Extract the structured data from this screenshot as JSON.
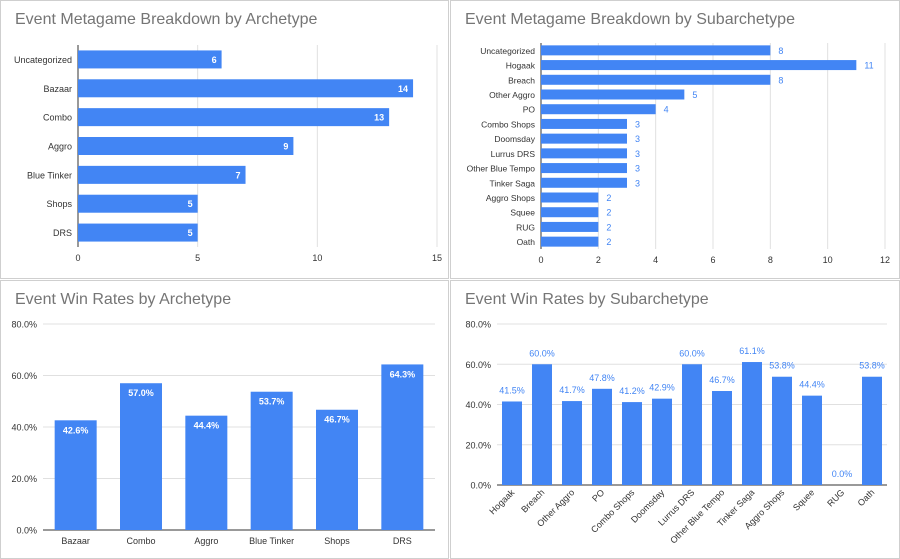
{
  "colors": {
    "bar": "#4285f4",
    "grid": "#e0e0e0",
    "axis": "#333333",
    "title": "#757575",
    "label_out": "#4285f4",
    "label_in": "#ffffff"
  },
  "chart_data": [
    {
      "type": "bar",
      "orientation": "horizontal",
      "title": "Event Metagame Breakdown by Archetype",
      "categories": [
        "Uncategorized",
        "Bazaar",
        "Combo",
        "Aggro",
        "Blue Tinker",
        "Shops",
        "DRS"
      ],
      "values": [
        6,
        14,
        13,
        9,
        7,
        5,
        5
      ],
      "xlim": [
        0,
        15
      ],
      "ticks": [
        0,
        5,
        10,
        15
      ],
      "tick_labels": [
        "0",
        "5",
        "10",
        "15"
      ],
      "grid": true,
      "legend": "none"
    },
    {
      "type": "bar",
      "orientation": "horizontal",
      "title": "Event Metagame Breakdown by Subarchetype",
      "categories": [
        "Uncategorized",
        "Hogaak",
        "Breach",
        "Other Aggro",
        "PO",
        "Combo Shops",
        "Doomsday",
        "Lurrus DRS",
        "Other Blue Tempo",
        "Tinker Saga",
        "Aggro Shops",
        "Squee",
        "RUG",
        "Oath"
      ],
      "values": [
        8,
        11,
        8,
        5,
        4,
        3,
        3,
        3,
        3,
        3,
        2,
        2,
        2,
        2
      ],
      "xlim": [
        0,
        12
      ],
      "ticks": [
        0,
        2,
        4,
        6,
        8,
        10,
        12
      ],
      "tick_labels": [
        "0",
        "2",
        "4",
        "6",
        "8",
        "10",
        "12"
      ],
      "grid": true,
      "legend": "none"
    },
    {
      "type": "bar",
      "orientation": "vertical",
      "title": "Event Win Rates by Archetype",
      "categories": [
        "Bazaar",
        "Combo",
        "Aggro",
        "Blue Tinker",
        "Shops",
        "DRS"
      ],
      "values": [
        42.6,
        57.0,
        44.4,
        53.7,
        46.7,
        64.3
      ],
      "value_labels": [
        "42.6%",
        "57.0%",
        "44.4%",
        "53.7%",
        "46.7%",
        "64.3%"
      ],
      "ylim": [
        0,
        80
      ],
      "ticks": [
        0,
        20,
        40,
        60,
        80
      ],
      "tick_labels": [
        "0.0%",
        "20.0%",
        "40.0%",
        "60.0%",
        "80.0%"
      ],
      "grid": true,
      "legend": "none"
    },
    {
      "type": "bar",
      "orientation": "vertical",
      "title": "Event Win Rates by Subarchetype",
      "categories": [
        "Hogaak",
        "Breach",
        "Other Aggro",
        "PO",
        "Combo Shops",
        "Doomsday",
        "Lurrus DRS",
        "Other Blue Tempo",
        "Tinker Saga",
        "Aggro Shops",
        "Squee",
        "RUG",
        "Oath"
      ],
      "values": [
        41.5,
        60.0,
        41.7,
        47.8,
        41.2,
        42.9,
        60.0,
        46.7,
        61.1,
        53.8,
        44.4,
        0.0,
        53.8
      ],
      "value_labels": [
        "41.5%",
        "60.0%",
        "41.7%",
        "47.8%",
        "41.2%",
        "42.9%",
        "60.0%",
        "46.7%",
        "61.1%",
        "53.8%",
        "44.4%",
        "0.0%",
        "53.8%"
      ],
      "ylim": [
        0,
        80
      ],
      "ticks": [
        0,
        20,
        40,
        60,
        80
      ],
      "tick_labels": [
        "0.0%",
        "20.0%",
        "40.0%",
        "60.0%",
        "80.0%"
      ],
      "grid": true,
      "legend": "none"
    }
  ]
}
